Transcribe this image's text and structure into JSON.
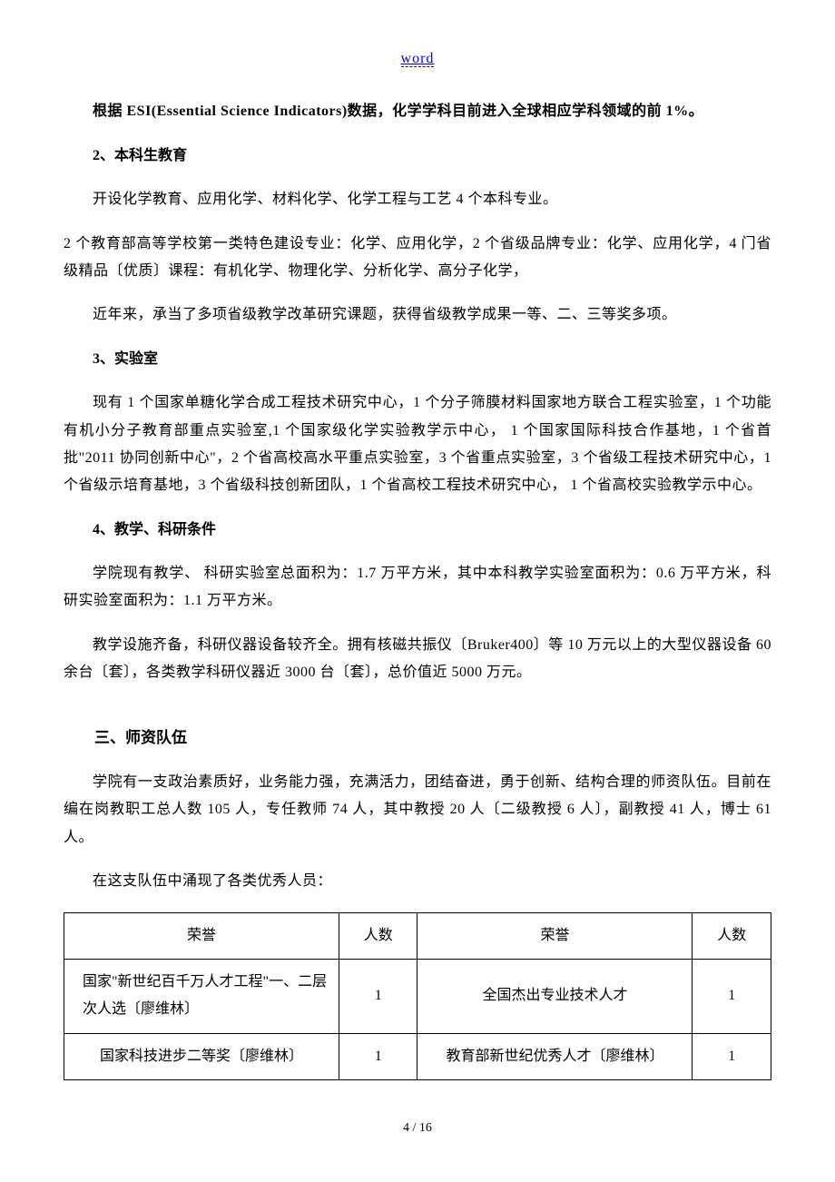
{
  "header": {
    "link": "word"
  },
  "content": {
    "p1": "根据 ESI(Essential Science Indicators)数据，化学学科目前进入全球相应学科领域的前 1%。",
    "h2": "2、本科生教育",
    "p2": "开设化学教育、应用化学、材料化学、化学工程与工艺 4 个本科专业。",
    "p3": "2 个教育部高等学校第一类特色建设专业：化学、应用化学，2 个省级品牌专业：化学、应用化学，4 门省级精品〔优质〕课程：有机化学、物理化学、分析化学、高分子化学，",
    "p4": "近年来，承当了多项省级教学改革研究课题，获得省级教学成果一等、二、三等奖多项。",
    "h3": "3、实验室",
    "p5": "现有 1 个国家单糖化学合成工程技术研究中心，1 个分子筛膜材料国家地方联合工程实验室，1 个功能有机小分子教育部重点实验室,1 个国家级化学实验教学示中心， 1 个国家国际科技合作基地，1 个省首批\"2011 协同创新中心\"，2 个省高校高水平重点实验室，3 个省重点实验室，3 个省级工程技术研究中心，1 个省级示培育基地，3 个省级科技创新团队，1 个省高校工程技术研究中心， 1 个省高校实验教学示中心。",
    "h4": "4、教学、科研条件",
    "p6": "学院现有教学、 科研实验室总面积为：1.7 万平方米，其中本科教学实验室面积为：0.6 万平方米，科研实验室面积为：1.1 万平方米。",
    "p7": "教学设施齐备，科研仪器设备较齐全。拥有核磁共振仪〔Bruker400〕等 10 万元以上的大型仪器设备 60 余台〔套〕，各类教学科研仪器近 3000 台〔套〕，总价值近 5000 万元。",
    "h5": "三、师资队伍",
    "p8": "学院有一支政治素质好，业务能力强，充满活力，团结奋进，勇于创新、结构合理的师资队伍。目前在编在岗教职工总人数 105 人，专任教师 74 人，其中教授 20 人〔二级教授 6 人〕，副教授 41 人，博士 61 人。",
    "p9": "在这支队伍中涌现了各类优秀人员："
  },
  "table": {
    "headers": {
      "honor1": "荣誉",
      "count1": "人数",
      "honor2": "荣誉",
      "count2": "人数"
    },
    "rows": [
      {
        "honor1": "国家\"新世纪百千万人才工程\"一、二层次人选〔廖维林〕",
        "count1": "1",
        "honor2": "全国杰出专业技术人才",
        "count2": "1"
      },
      {
        "honor1": "国家科技进步二等奖〔廖维林〕",
        "count1": "1",
        "honor2": "教育部新世纪优秀人才〔廖维林〕",
        "count2": "1"
      }
    ]
  },
  "footer": {
    "pagination": "4 / 16"
  }
}
